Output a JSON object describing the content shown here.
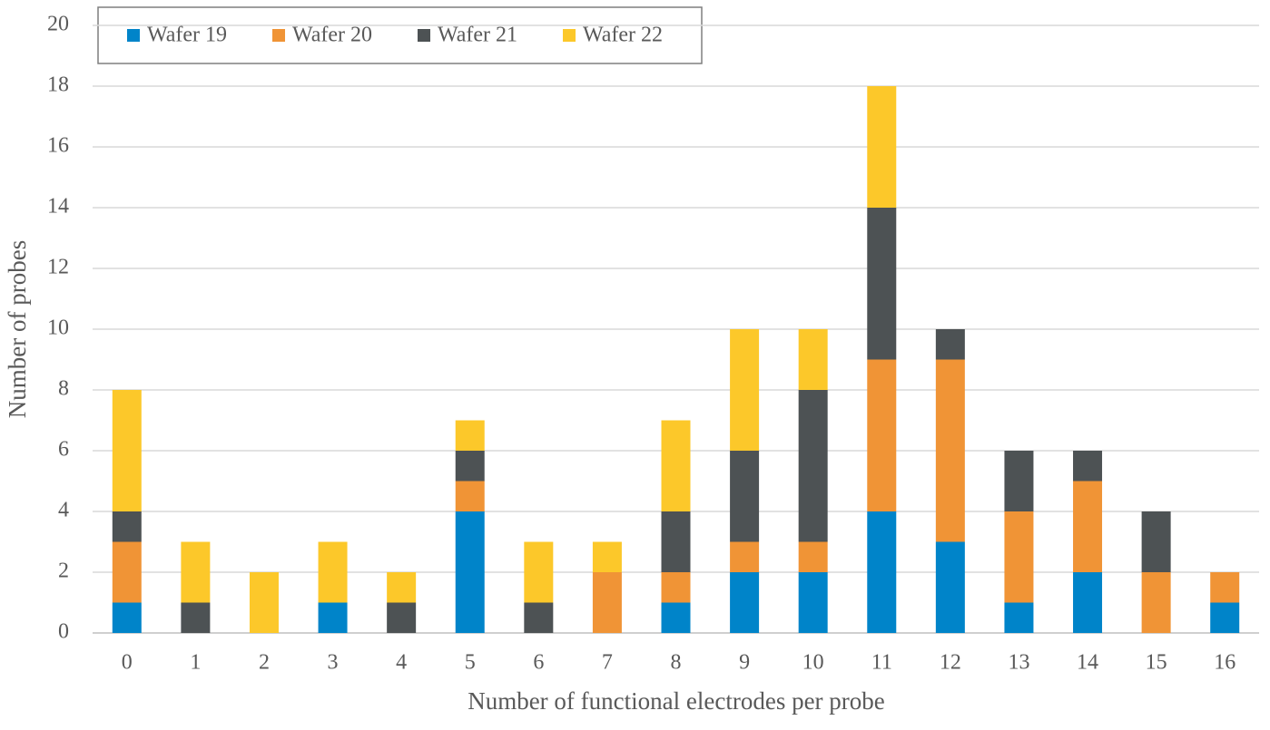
{
  "chart_data": {
    "type": "stacked_bar",
    "x_label": "Number of functional electrodes per probe",
    "y_label": "Number of probes",
    "categories": [
      "0",
      "1",
      "2",
      "3",
      "4",
      "5",
      "6",
      "7",
      "8",
      "9",
      "10",
      "11",
      "12",
      "13",
      "14",
      "15",
      "16"
    ],
    "series": [
      {
        "name": "Wafer 19",
        "color": "#0084c9",
        "values": [
          1,
          0,
          0,
          1,
          0,
          4,
          0,
          0,
          1,
          2,
          2,
          4,
          3,
          1,
          2,
          0,
          1
        ]
      },
      {
        "name": "Wafer 20",
        "color": "#f09436",
        "values": [
          2,
          0,
          0,
          0,
          0,
          1,
          0,
          2,
          1,
          1,
          1,
          5,
          6,
          3,
          3,
          2,
          1
        ]
      },
      {
        "name": "Wafer 21",
        "color": "#4d5254",
        "values": [
          1,
          1,
          0,
          0,
          1,
          1,
          1,
          0,
          2,
          3,
          5,
          5,
          1,
          2,
          1,
          2,
          0
        ]
      },
      {
        "name": "Wafer 22",
        "color": "#fcc82a",
        "values": [
          4,
          2,
          2,
          2,
          1,
          1,
          2,
          1,
          3,
          4,
          2,
          4,
          0,
          0,
          0,
          0,
          0
        ]
      }
    ],
    "ylim": [
      0,
      20
    ],
    "yticks": [
      0,
      2,
      4,
      6,
      8,
      10,
      12,
      14,
      16,
      18,
      20
    ],
    "grid": true,
    "legend": "top-left"
  }
}
